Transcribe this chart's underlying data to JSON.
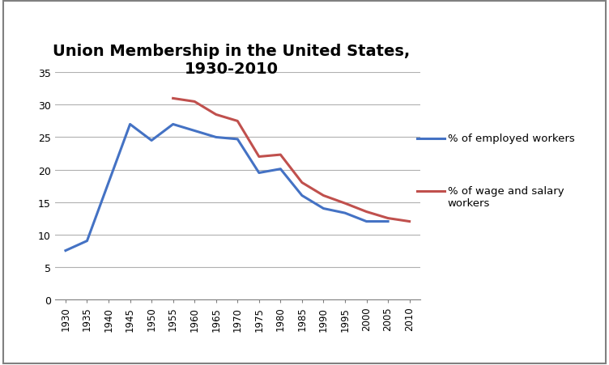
{
  "title": "Union Membership in the United States,\n1930-2010",
  "xtick_labels": [
    "1930",
    "1935",
    "1940",
    "1945",
    "1950",
    "1955",
    "1960",
    "1965",
    "1970",
    "1975",
    "1980",
    "1985",
    "1990",
    "1995",
    "2000",
    "2005",
    "2010"
  ],
  "n_ticks": 17,
  "employed_x_indices": [
    0,
    1,
    3,
    4,
    5,
    6,
    7,
    8,
    9,
    10,
    11,
    12,
    13,
    14,
    15
  ],
  "employed_y": [
    7.5,
    9.0,
    27.0,
    24.5,
    27.0,
    26.0,
    25.0,
    24.7,
    19.5,
    20.1,
    16.0,
    14.0,
    13.3,
    12.0,
    12.0
  ],
  "wage_x_indices": [
    5,
    6,
    7,
    8,
    9,
    10,
    11,
    12,
    13,
    14,
    15,
    16
  ],
  "wage_y": [
    31.0,
    30.5,
    28.5,
    27.5,
    22.0,
    22.3,
    18.0,
    16.0,
    14.8,
    13.5,
    12.5,
    12.0
  ],
  "color_employed": "#4472C4",
  "color_wage": "#C0504D",
  "ylim": [
    0,
    35
  ],
  "yticks": [
    0,
    5,
    10,
    15,
    20,
    25,
    30,
    35
  ],
  "legend_employed": "% of employed workers",
  "legend_wage": "% of wage and salary\nworkers",
  "background_color": "#ffffff",
  "grid_color": "#b0b0b0",
  "border_color": "#808080",
  "linewidth": 2.2
}
